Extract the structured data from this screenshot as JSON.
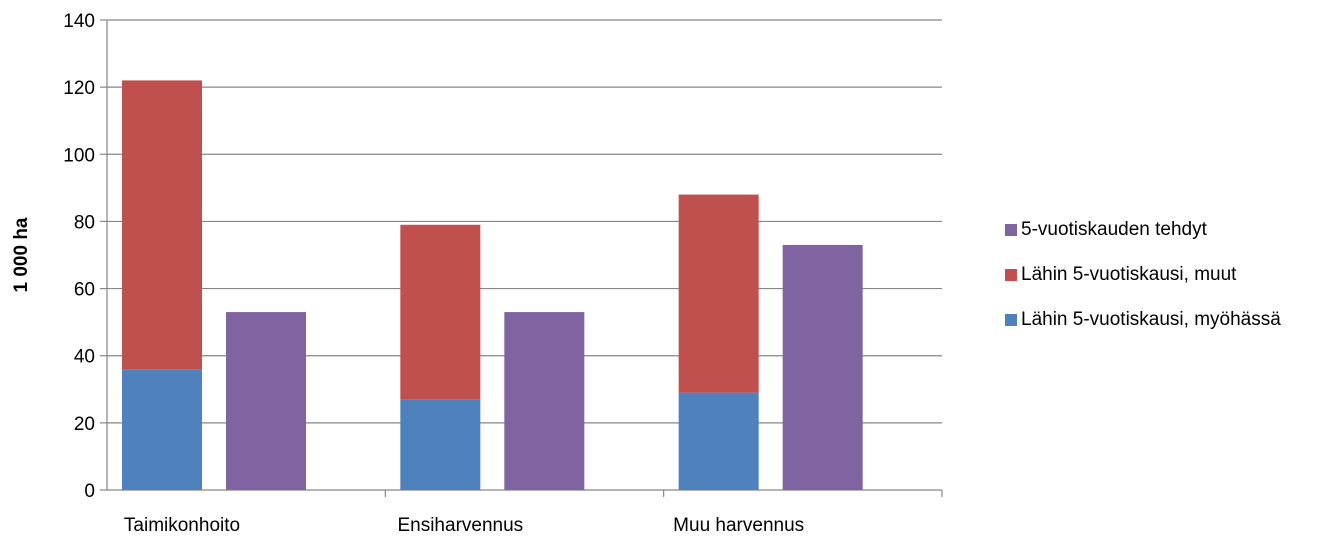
{
  "chart_data": {
    "type": "bar",
    "stacked": true,
    "ylabel": "1 000 ha",
    "ylim": [
      0,
      140
    ],
    "yticks": [
      0,
      20,
      40,
      60,
      80,
      100,
      120,
      140
    ],
    "grid": true,
    "legend_position": "right",
    "categories": [
      "Taimikonhoito",
      "Ensiharvennus",
      "Muu harvennus"
    ],
    "series": [
      {
        "name": "Lähin 5-vuotiskausi, myöhässä",
        "stack": "lahin",
        "color": "#4F81BD",
        "values": [
          36,
          27,
          29
        ]
      },
      {
        "name": "Lähin 5-vuotiskausi, muut",
        "stack": "lahin",
        "color": "#C0504D",
        "values": [
          86,
          52,
          59
        ]
      },
      {
        "name": "5-vuotiskauden tehdyt",
        "stack": "tehdyt",
        "color": "#8064A2",
        "values": [
          53,
          53,
          73
        ]
      }
    ],
    "legend_order": [
      2,
      1,
      0
    ]
  }
}
